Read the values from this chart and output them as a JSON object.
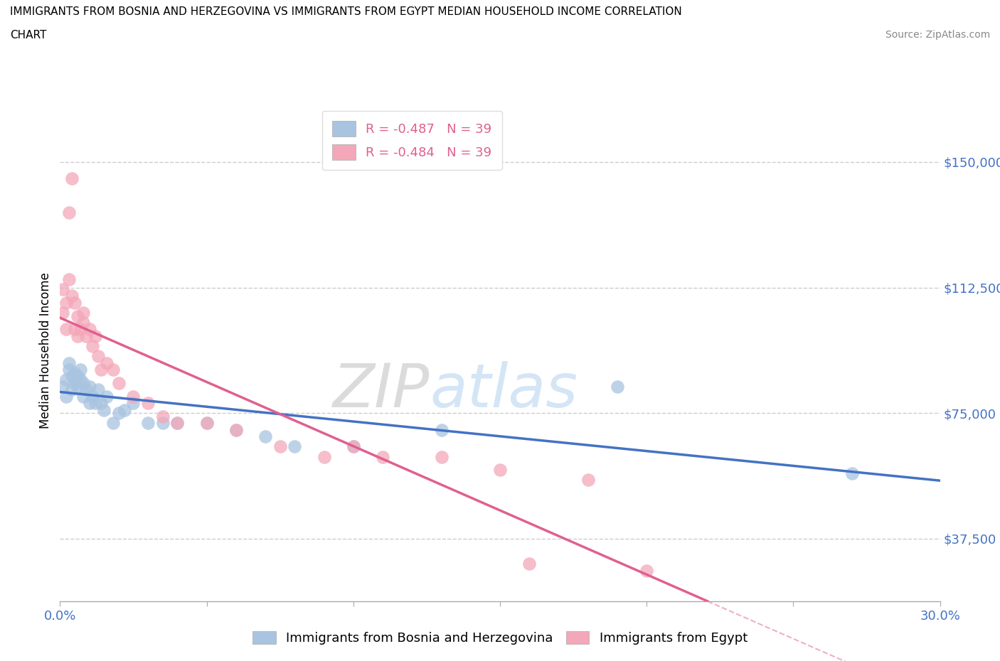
{
  "title_line1": "IMMIGRANTS FROM BOSNIA AND HERZEGOVINA VS IMMIGRANTS FROM EGYPT MEDIAN HOUSEHOLD INCOME CORRELATION",
  "title_line2": "CHART",
  "source_text": "Source: ZipAtlas.com",
  "ylabel": "Median Household Income",
  "xlim": [
    0.0,
    0.3
  ],
  "ylim": [
    18750,
    168750
  ],
  "x_ticks": [
    0.0,
    0.05,
    0.1,
    0.15,
    0.2,
    0.25,
    0.3
  ],
  "y_ticks": [
    37500,
    75000,
    112500,
    150000
  ],
  "y_tick_labels": [
    "$37,500",
    "$75,000",
    "$112,500",
    "$150,000"
  ],
  "r_bosnia": -0.487,
  "n_bosnia": 39,
  "r_egypt": -0.484,
  "n_egypt": 39,
  "color_bosnia": "#a8c4e0",
  "color_egypt": "#f4a7b9",
  "line_color_bosnia": "#4472c4",
  "line_color_egypt": "#e06090",
  "grid_color": "#cccccc",
  "background_color": "#ffffff",
  "legend_label_bosnia": "Immigrants from Bosnia and Herzegovina",
  "legend_label_egypt": "Immigrants from Egypt",
  "bosnia_x": [
    0.001,
    0.002,
    0.002,
    0.003,
    0.003,
    0.004,
    0.004,
    0.005,
    0.005,
    0.006,
    0.006,
    0.007,
    0.007,
    0.008,
    0.008,
    0.009,
    0.01,
    0.01,
    0.011,
    0.012,
    0.013,
    0.014,
    0.015,
    0.016,
    0.018,
    0.02,
    0.022,
    0.025,
    0.03,
    0.035,
    0.04,
    0.05,
    0.06,
    0.07,
    0.08,
    0.1,
    0.13,
    0.19,
    0.27
  ],
  "bosnia_y": [
    83000,
    85000,
    80000,
    90000,
    88000,
    86000,
    82000,
    87000,
    84000,
    83000,
    86000,
    88000,
    85000,
    80000,
    84000,
    82000,
    78000,
    83000,
    80000,
    78000,
    82000,
    78000,
    76000,
    80000,
    72000,
    75000,
    76000,
    78000,
    72000,
    72000,
    72000,
    72000,
    70000,
    68000,
    65000,
    65000,
    70000,
    83000,
    57000
  ],
  "egypt_x": [
    0.001,
    0.001,
    0.002,
    0.002,
    0.003,
    0.003,
    0.004,
    0.004,
    0.005,
    0.005,
    0.006,
    0.006,
    0.007,
    0.008,
    0.008,
    0.009,
    0.01,
    0.011,
    0.012,
    0.013,
    0.014,
    0.016,
    0.018,
    0.02,
    0.025,
    0.03,
    0.035,
    0.04,
    0.05,
    0.06,
    0.075,
    0.09,
    0.1,
    0.11,
    0.13,
    0.15,
    0.16,
    0.18,
    0.2
  ],
  "egypt_y": [
    105000,
    112000,
    108000,
    100000,
    115000,
    135000,
    145000,
    110000,
    100000,
    108000,
    98000,
    104000,
    100000,
    102000,
    105000,
    98000,
    100000,
    95000,
    98000,
    92000,
    88000,
    90000,
    88000,
    84000,
    80000,
    78000,
    74000,
    72000,
    72000,
    70000,
    65000,
    62000,
    65000,
    62000,
    62000,
    58000,
    30000,
    55000,
    28000
  ]
}
